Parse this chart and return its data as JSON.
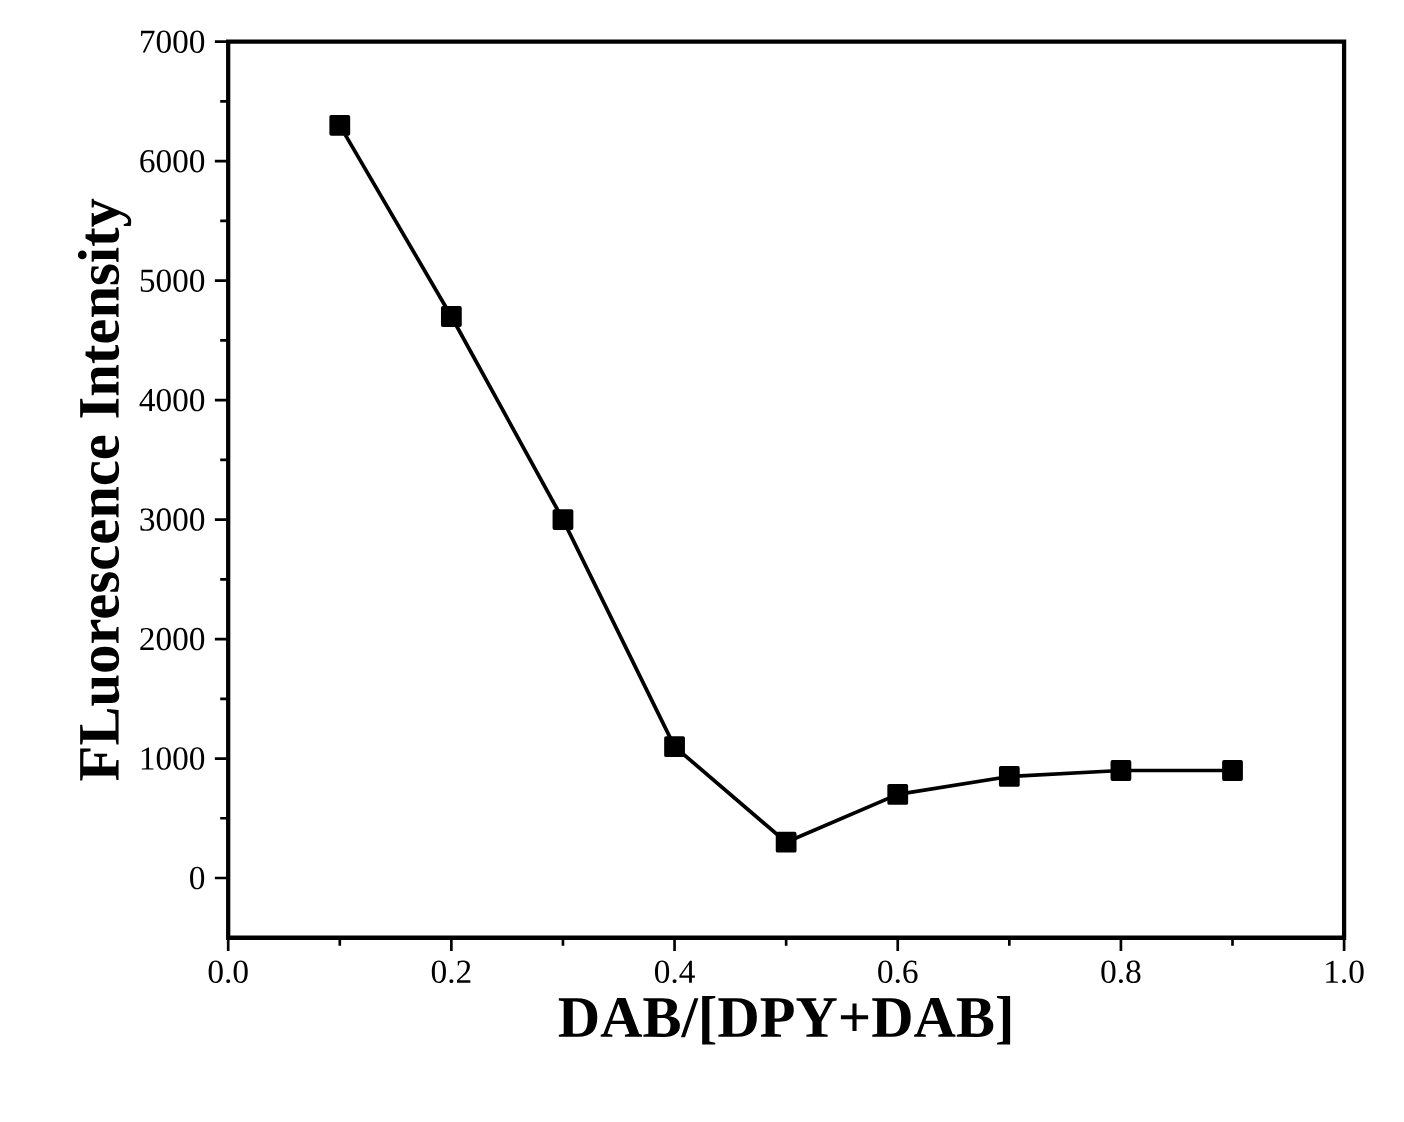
{
  "chart_data": {
    "type": "line",
    "xlabel": "DAB/[DPY+DAB]",
    "ylabel": "FLuorescence Intensity",
    "x": [
      0.1,
      0.2,
      0.3,
      0.4,
      0.5,
      0.6,
      0.7,
      0.8,
      0.9
    ],
    "series": [
      {
        "color": "#000000",
        "values": [
          6300,
          4700,
          3000,
          1100,
          300,
          700,
          850,
          900,
          900
        ]
      }
    ],
    "xlim": [
      0.0,
      1.0
    ],
    "xticks": [
      {
        "value": 0.0,
        "label": "0.0"
      },
      {
        "value": 0.2,
        "label": "0.2"
      },
      {
        "value": 0.4,
        "label": "0.4"
      },
      {
        "value": 0.6,
        "label": "0.6"
      },
      {
        "value": 0.8,
        "label": "0.8"
      },
      {
        "value": 1.0,
        "label": "1.0"
      }
    ],
    "ylim": [
      -500,
      7000
    ],
    "yticks": [
      0,
      1000,
      2000,
      3000,
      4000,
      5000,
      6000,
      7000
    ],
    "grid": false,
    "marker": "square",
    "line_style": "solid"
  }
}
